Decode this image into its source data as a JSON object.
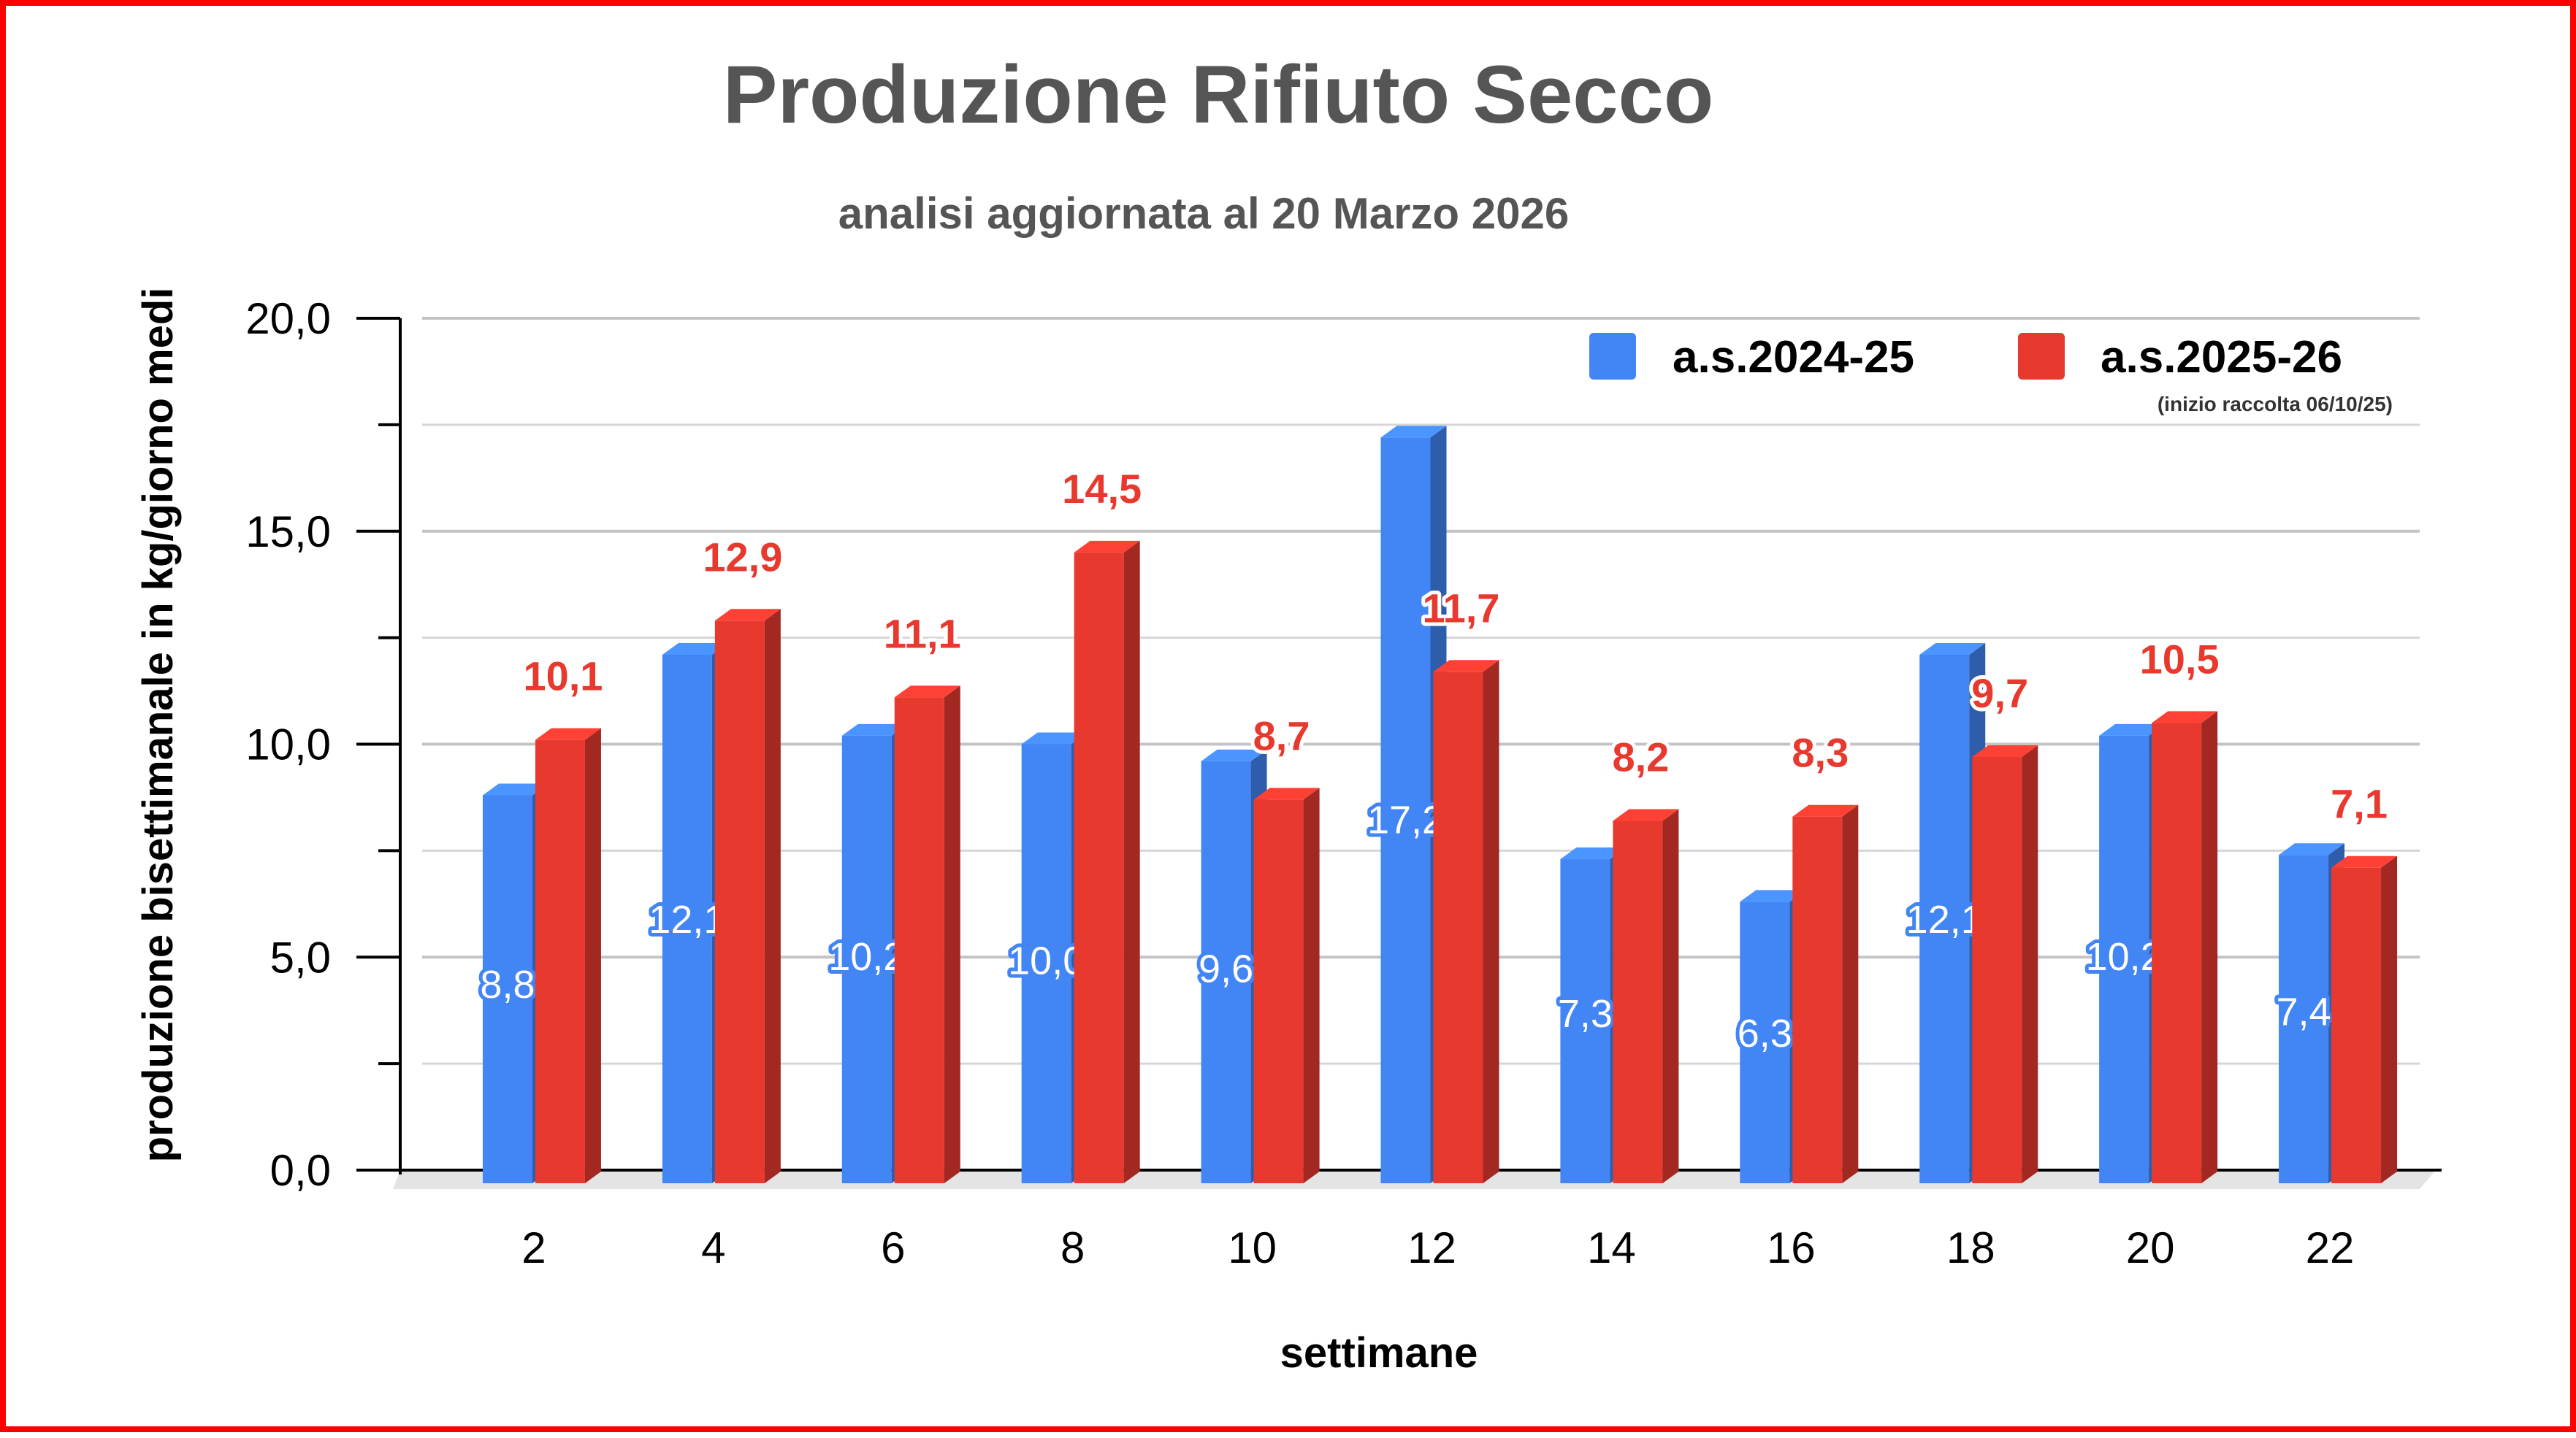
{
  "chart_data": {
    "type": "bar",
    "title": "Produzione Rifiuto Secco",
    "subtitle": "analisi aggiornata al 20 Marzo 2026",
    "xlabel": "settimane",
    "ylabel": "produzione bisettimanale in kg/giorno medi",
    "categories": [
      "2",
      "4",
      "6",
      "8",
      "10",
      "12",
      "14",
      "16",
      "18",
      "20",
      "22"
    ],
    "ylim": [
      0,
      20
    ],
    "yticks": [
      "0,0",
      "5,0",
      "10,0",
      "15,0",
      "20,0"
    ],
    "grid": true,
    "legend_position": "top-right",
    "legend_note": "(inizio raccolta 06/10/25)",
    "series": [
      {
        "name": "a.s.2024-25",
        "color": "#4285f4",
        "values": [
          8.8,
          12.1,
          10.2,
          10.0,
          9.6,
          17.2,
          7.3,
          6.3,
          12.1,
          10.2,
          7.4
        ],
        "labels": [
          "8,8",
          "12,1",
          "10,2",
          "10,0",
          "9,6",
          "17,2",
          "7,3",
          "6,3",
          "12,1",
          "10,2",
          "7,4"
        ]
      },
      {
        "name": "a.s.2025-26",
        "color": "#e8392f",
        "values": [
          10.1,
          12.9,
          11.1,
          14.5,
          8.7,
          11.7,
          8.2,
          8.3,
          9.7,
          10.5,
          7.1
        ],
        "labels": [
          "10,1",
          "12,9",
          "11,1",
          "14,5",
          "8,7",
          "11,7",
          "8,2",
          "8,3",
          "9,7",
          "10,5",
          "7,1"
        ]
      }
    ]
  }
}
